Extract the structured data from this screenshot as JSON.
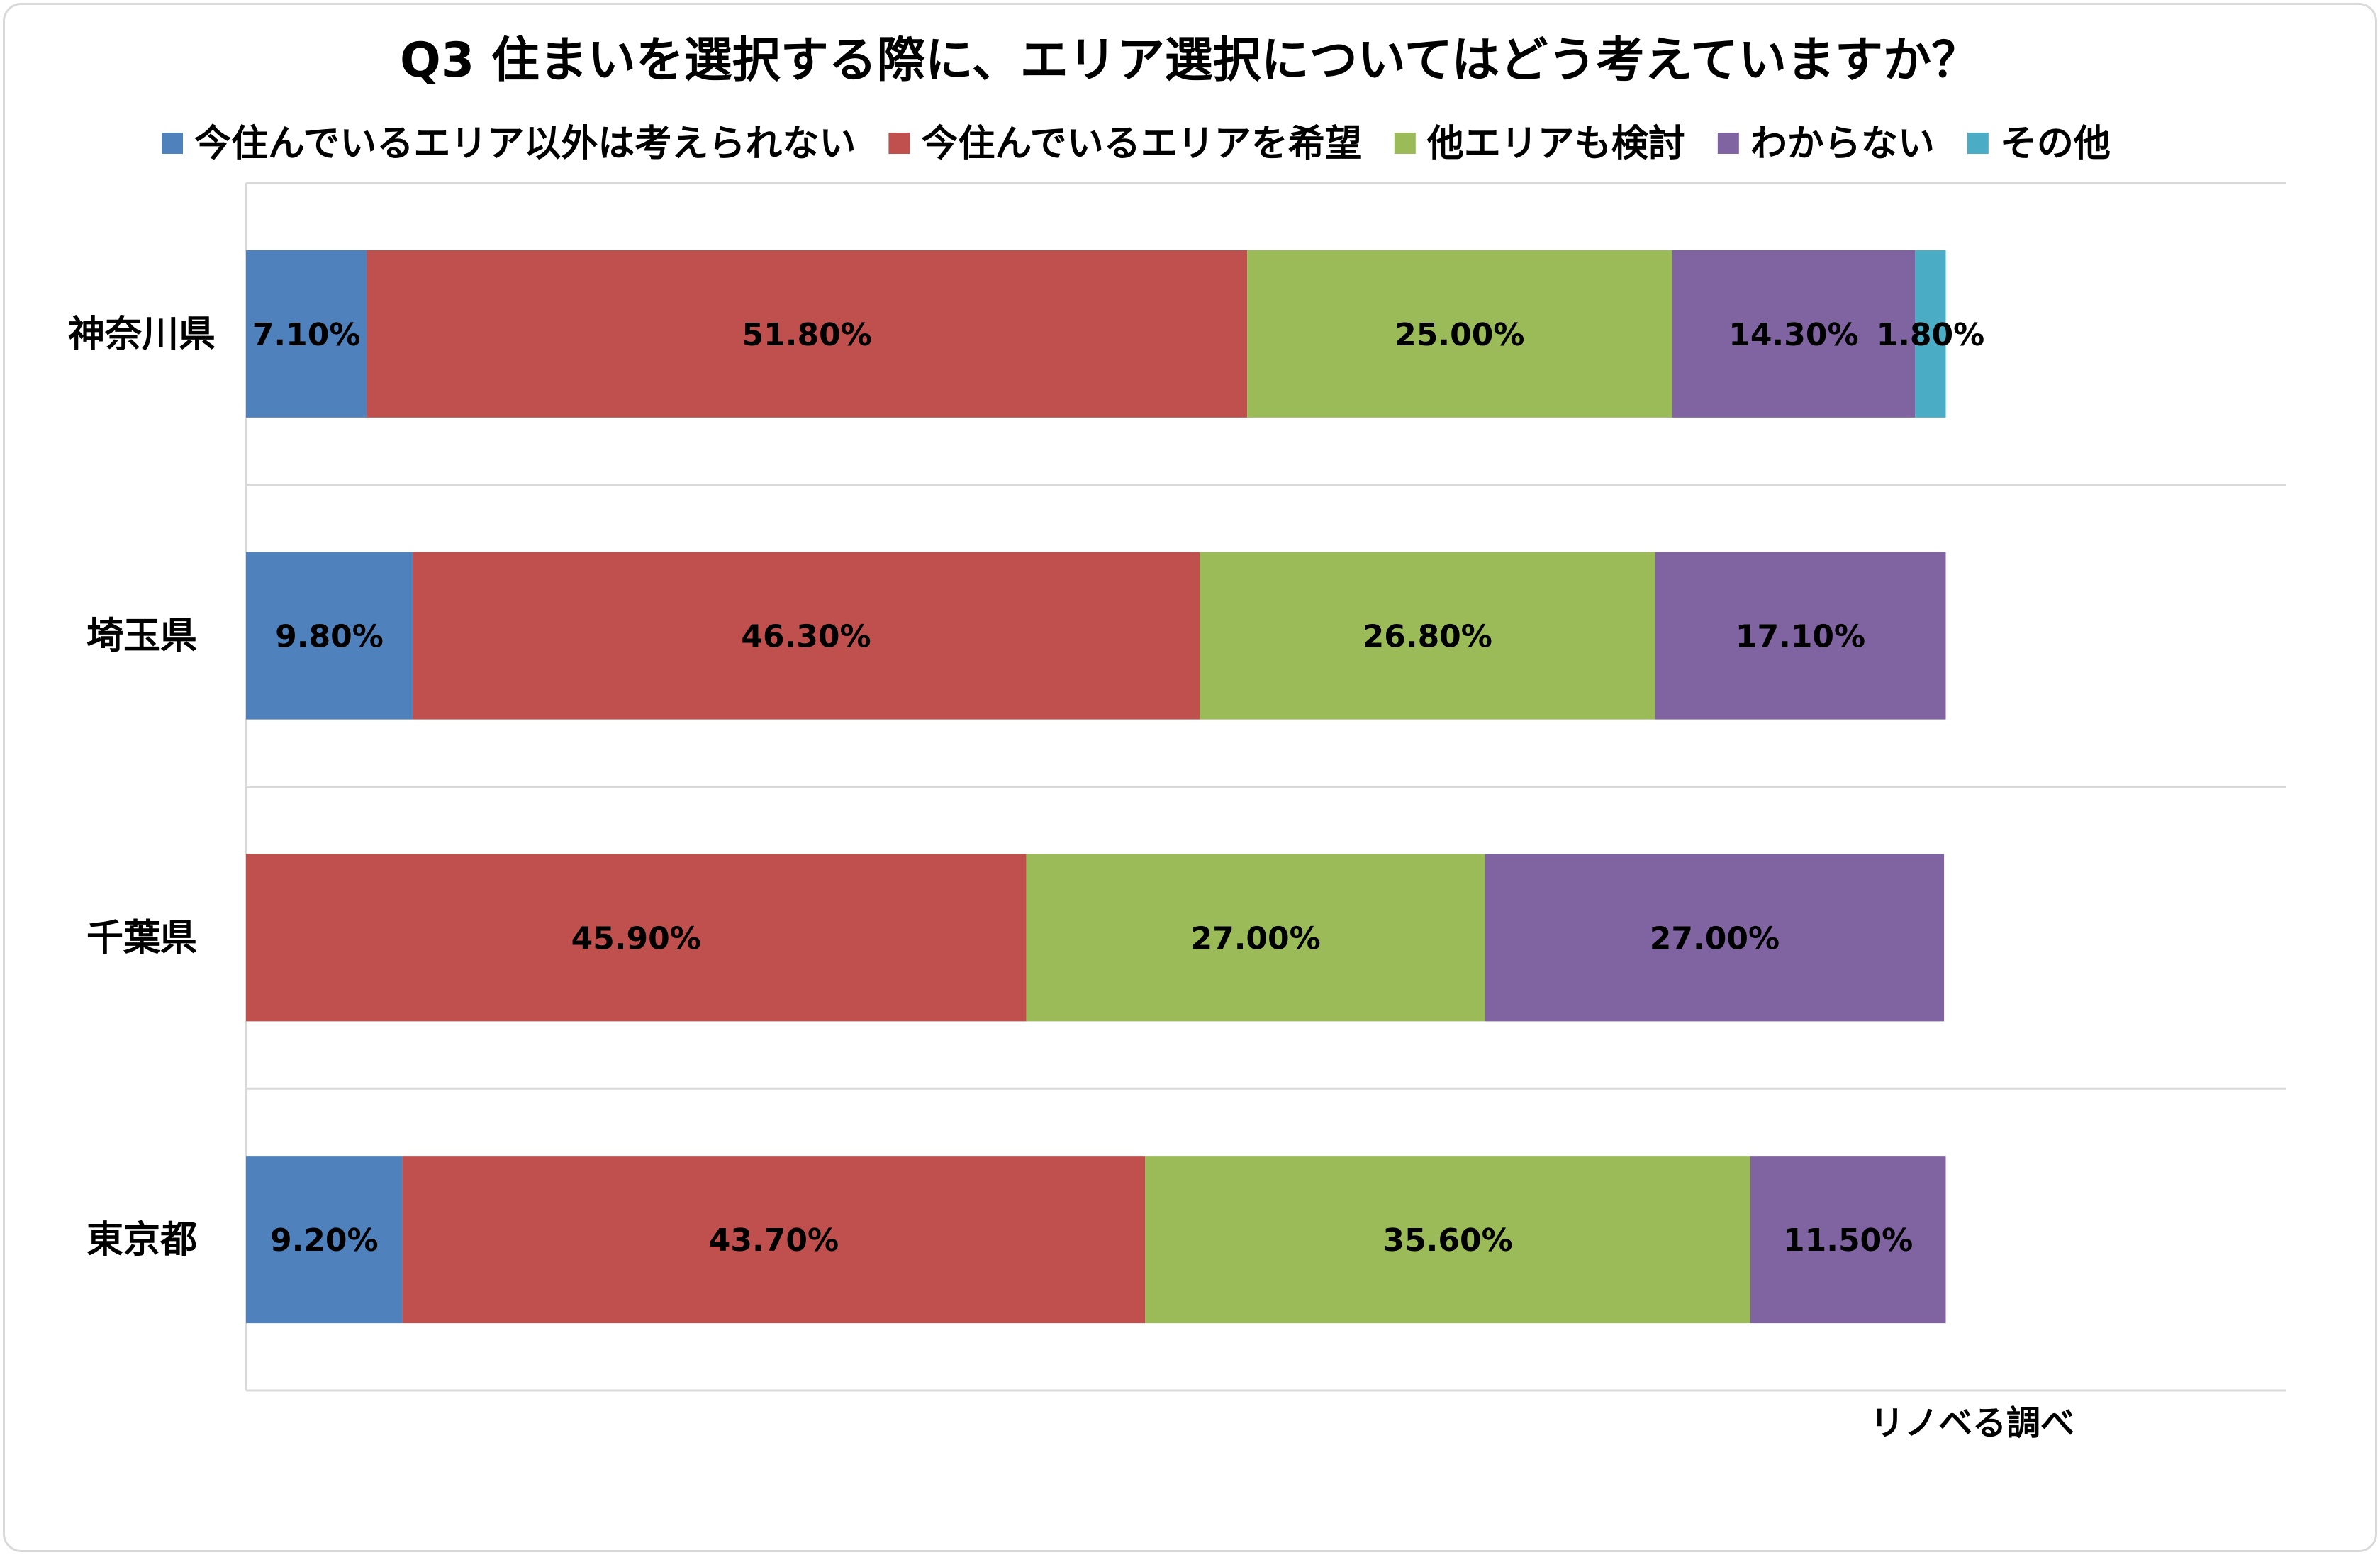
{
  "chart_data": {
    "type": "bar",
    "orientation": "horizontal",
    "stacked": true,
    "title": "Q3 住まいを選択する際に、エリア選択についてはどう考えていますか？",
    "categories": [
      "神奈川県",
      "埼玉県",
      "千葉県",
      "東京都"
    ],
    "series": [
      {
        "name": "今住んでいるエリア以外は考えられない",
        "color": "#4f81bd",
        "values": [
          7.1,
          9.8,
          0,
          9.2
        ],
        "labels": [
          "7.10%",
          "9.80%",
          "",
          "9.20%"
        ]
      },
      {
        "name": "今住んでいるエリアを希望",
        "color": "#c0504d",
        "values": [
          51.8,
          46.3,
          45.9,
          43.7
        ],
        "labels": [
          "51.80%",
          "46.30%",
          "45.90%",
          "43.70%"
        ]
      },
      {
        "name": "他エリアも検討",
        "color": "#9bbb59",
        "values": [
          25.0,
          26.8,
          27.0,
          35.6
        ],
        "labels": [
          "25.00%",
          "26.80%",
          "27.00%",
          "35.60%"
        ]
      },
      {
        "name": "わからない",
        "color": "#8064a2",
        "values": [
          14.3,
          17.1,
          27.0,
          11.5
        ],
        "labels": [
          "14.30%",
          "17.10%",
          "27.00%",
          "11.50%"
        ]
      },
      {
        "name": "その他",
        "color": "#4bacc6",
        "values": [
          1.8,
          0,
          0,
          0
        ],
        "labels": [
          "1.80%",
          "",
          "",
          ""
        ]
      }
    ],
    "xlim": [
      0,
      120
    ],
    "axis_tick_labels_visible": false,
    "grid": "horizontal separators between categories",
    "legend": "top",
    "source_note": "リノベる調べ"
  }
}
